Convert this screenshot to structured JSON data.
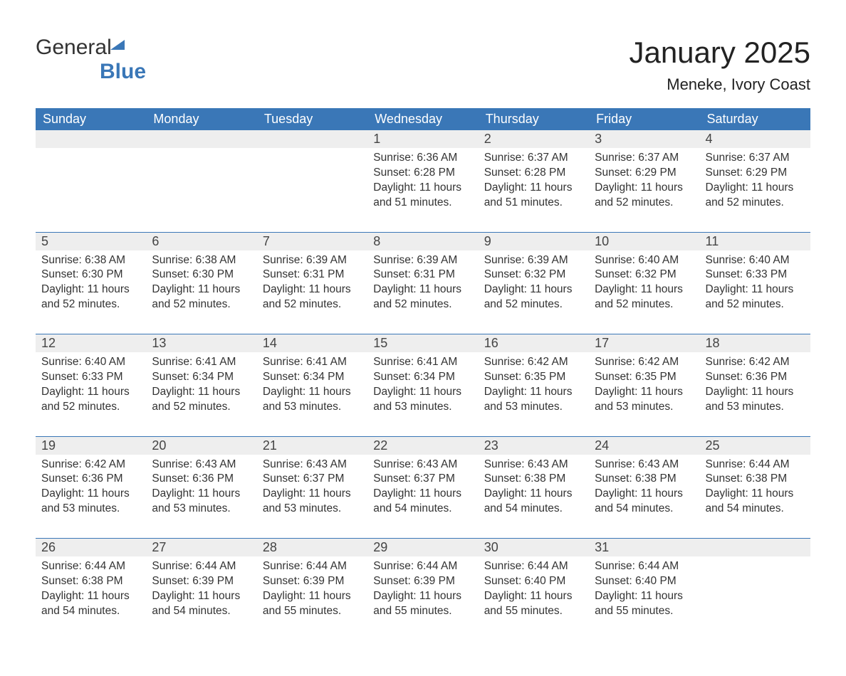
{
  "logo": {
    "word1": "General",
    "word2": "Blue"
  },
  "header": {
    "title": "January 2025",
    "subtitle": "Meneke, Ivory Coast"
  },
  "columns": [
    "Sunday",
    "Monday",
    "Tuesday",
    "Wednesday",
    "Thursday",
    "Friday",
    "Saturday"
  ],
  "style": {
    "accent_color": "#3a77b7",
    "header_bg": "#3a77b7",
    "header_fg": "#ffffff",
    "daynum_bg": "#eeeeee",
    "body_bg": "#ffffff",
    "text_color": "#333333",
    "title_fontsize": 42,
    "subtitle_fontsize": 22,
    "dayheader_fontsize": 18,
    "cell_fontsize": 15.5,
    "font_family": "Arial"
  },
  "weeks": [
    [
      null,
      null,
      null,
      {
        "n": "1",
        "sunrise": "Sunrise: 6:36 AM",
        "sunset": "Sunset: 6:28 PM",
        "d1": "Daylight: 11 hours",
        "d2": "and 51 minutes."
      },
      {
        "n": "2",
        "sunrise": "Sunrise: 6:37 AM",
        "sunset": "Sunset: 6:28 PM",
        "d1": "Daylight: 11 hours",
        "d2": "and 51 minutes."
      },
      {
        "n": "3",
        "sunrise": "Sunrise: 6:37 AM",
        "sunset": "Sunset: 6:29 PM",
        "d1": "Daylight: 11 hours",
        "d2": "and 52 minutes."
      },
      {
        "n": "4",
        "sunrise": "Sunrise: 6:37 AM",
        "sunset": "Sunset: 6:29 PM",
        "d1": "Daylight: 11 hours",
        "d2": "and 52 minutes."
      }
    ],
    [
      {
        "n": "5",
        "sunrise": "Sunrise: 6:38 AM",
        "sunset": "Sunset: 6:30 PM",
        "d1": "Daylight: 11 hours",
        "d2": "and 52 minutes."
      },
      {
        "n": "6",
        "sunrise": "Sunrise: 6:38 AM",
        "sunset": "Sunset: 6:30 PM",
        "d1": "Daylight: 11 hours",
        "d2": "and 52 minutes."
      },
      {
        "n": "7",
        "sunrise": "Sunrise: 6:39 AM",
        "sunset": "Sunset: 6:31 PM",
        "d1": "Daylight: 11 hours",
        "d2": "and 52 minutes."
      },
      {
        "n": "8",
        "sunrise": "Sunrise: 6:39 AM",
        "sunset": "Sunset: 6:31 PM",
        "d1": "Daylight: 11 hours",
        "d2": "and 52 minutes."
      },
      {
        "n": "9",
        "sunrise": "Sunrise: 6:39 AM",
        "sunset": "Sunset: 6:32 PM",
        "d1": "Daylight: 11 hours",
        "d2": "and 52 minutes."
      },
      {
        "n": "10",
        "sunrise": "Sunrise: 6:40 AM",
        "sunset": "Sunset: 6:32 PM",
        "d1": "Daylight: 11 hours",
        "d2": "and 52 minutes."
      },
      {
        "n": "11",
        "sunrise": "Sunrise: 6:40 AM",
        "sunset": "Sunset: 6:33 PM",
        "d1": "Daylight: 11 hours",
        "d2": "and 52 minutes."
      }
    ],
    [
      {
        "n": "12",
        "sunrise": "Sunrise: 6:40 AM",
        "sunset": "Sunset: 6:33 PM",
        "d1": "Daylight: 11 hours",
        "d2": "and 52 minutes."
      },
      {
        "n": "13",
        "sunrise": "Sunrise: 6:41 AM",
        "sunset": "Sunset: 6:34 PM",
        "d1": "Daylight: 11 hours",
        "d2": "and 52 minutes."
      },
      {
        "n": "14",
        "sunrise": "Sunrise: 6:41 AM",
        "sunset": "Sunset: 6:34 PM",
        "d1": "Daylight: 11 hours",
        "d2": "and 53 minutes."
      },
      {
        "n": "15",
        "sunrise": "Sunrise: 6:41 AM",
        "sunset": "Sunset: 6:34 PM",
        "d1": "Daylight: 11 hours",
        "d2": "and 53 minutes."
      },
      {
        "n": "16",
        "sunrise": "Sunrise: 6:42 AM",
        "sunset": "Sunset: 6:35 PM",
        "d1": "Daylight: 11 hours",
        "d2": "and 53 minutes."
      },
      {
        "n": "17",
        "sunrise": "Sunrise: 6:42 AM",
        "sunset": "Sunset: 6:35 PM",
        "d1": "Daylight: 11 hours",
        "d2": "and 53 minutes."
      },
      {
        "n": "18",
        "sunrise": "Sunrise: 6:42 AM",
        "sunset": "Sunset: 6:36 PM",
        "d1": "Daylight: 11 hours",
        "d2": "and 53 minutes."
      }
    ],
    [
      {
        "n": "19",
        "sunrise": "Sunrise: 6:42 AM",
        "sunset": "Sunset: 6:36 PM",
        "d1": "Daylight: 11 hours",
        "d2": "and 53 minutes."
      },
      {
        "n": "20",
        "sunrise": "Sunrise: 6:43 AM",
        "sunset": "Sunset: 6:36 PM",
        "d1": "Daylight: 11 hours",
        "d2": "and 53 minutes."
      },
      {
        "n": "21",
        "sunrise": "Sunrise: 6:43 AM",
        "sunset": "Sunset: 6:37 PM",
        "d1": "Daylight: 11 hours",
        "d2": "and 53 minutes."
      },
      {
        "n": "22",
        "sunrise": "Sunrise: 6:43 AM",
        "sunset": "Sunset: 6:37 PM",
        "d1": "Daylight: 11 hours",
        "d2": "and 54 minutes."
      },
      {
        "n": "23",
        "sunrise": "Sunrise: 6:43 AM",
        "sunset": "Sunset: 6:38 PM",
        "d1": "Daylight: 11 hours",
        "d2": "and 54 minutes."
      },
      {
        "n": "24",
        "sunrise": "Sunrise: 6:43 AM",
        "sunset": "Sunset: 6:38 PM",
        "d1": "Daylight: 11 hours",
        "d2": "and 54 minutes."
      },
      {
        "n": "25",
        "sunrise": "Sunrise: 6:44 AM",
        "sunset": "Sunset: 6:38 PM",
        "d1": "Daylight: 11 hours",
        "d2": "and 54 minutes."
      }
    ],
    [
      {
        "n": "26",
        "sunrise": "Sunrise: 6:44 AM",
        "sunset": "Sunset: 6:38 PM",
        "d1": "Daylight: 11 hours",
        "d2": "and 54 minutes."
      },
      {
        "n": "27",
        "sunrise": "Sunrise: 6:44 AM",
        "sunset": "Sunset: 6:39 PM",
        "d1": "Daylight: 11 hours",
        "d2": "and 54 minutes."
      },
      {
        "n": "28",
        "sunrise": "Sunrise: 6:44 AM",
        "sunset": "Sunset: 6:39 PM",
        "d1": "Daylight: 11 hours",
        "d2": "and 55 minutes."
      },
      {
        "n": "29",
        "sunrise": "Sunrise: 6:44 AM",
        "sunset": "Sunset: 6:39 PM",
        "d1": "Daylight: 11 hours",
        "d2": "and 55 minutes."
      },
      {
        "n": "30",
        "sunrise": "Sunrise: 6:44 AM",
        "sunset": "Sunset: 6:40 PM",
        "d1": "Daylight: 11 hours",
        "d2": "and 55 minutes."
      },
      {
        "n": "31",
        "sunrise": "Sunrise: 6:44 AM",
        "sunset": "Sunset: 6:40 PM",
        "d1": "Daylight: 11 hours",
        "d2": "and 55 minutes."
      },
      null
    ]
  ]
}
